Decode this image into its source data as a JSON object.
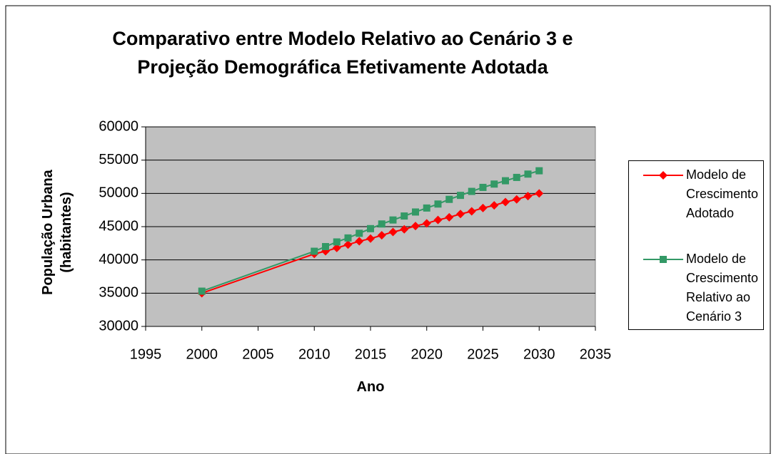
{
  "chart_data": {
    "type": "line",
    "title": "Comparativo entre Modelo Relativo ao Cenário 3 e Projeção Demográfica Efetivamente Adotada",
    "xlabel": "Ano",
    "ylabel": "População Urbana (habitantes)",
    "x": [
      2000,
      2010,
      2011,
      2012,
      2013,
      2014,
      2015,
      2016,
      2017,
      2018,
      2019,
      2020,
      2021,
      2022,
      2023,
      2024,
      2025,
      2026,
      2027,
      2028,
      2029,
      2030
    ],
    "series": [
      {
        "name": "Modelo de Crescimento Adotado",
        "color": "#ff0000",
        "marker": "diamond",
        "values": [
          35000,
          40900,
          41300,
          41800,
          42300,
          42800,
          43200,
          43700,
          44200,
          44600,
          45100,
          45500,
          46000,
          46400,
          46900,
          47300,
          47800,
          48200,
          48700,
          49100,
          49600,
          50000
        ]
      },
      {
        "name": "Modelo de Crescimento Relativo ao Cenário 3",
        "color": "#339966",
        "marker": "square",
        "values": [
          35300,
          41300,
          42000,
          42700,
          43300,
          44000,
          44700,
          45400,
          46000,
          46600,
          47200,
          47800,
          48400,
          49100,
          49700,
          50300,
          50900,
          51400,
          51900,
          52400,
          52900,
          53400
        ]
      }
    ],
    "xlim": [
      1995,
      2035
    ],
    "xticks": [
      1995,
      2000,
      2005,
      2010,
      2015,
      2020,
      2025,
      2030,
      2035
    ],
    "ylim": [
      30000,
      60000
    ],
    "yticks": [
      30000,
      35000,
      40000,
      45000,
      50000,
      55000,
      60000
    ],
    "grid": true,
    "legend": "right",
    "plot_background": "#c0c0c0"
  }
}
